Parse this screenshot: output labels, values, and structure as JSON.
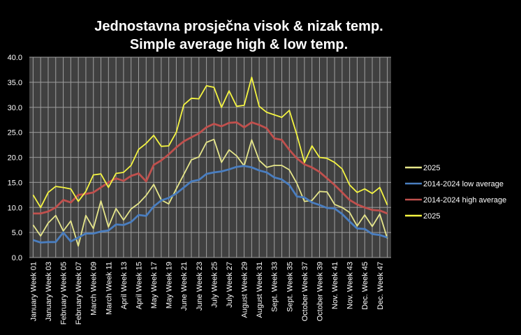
{
  "chart_data": {
    "type": "line",
    "title": [
      "Jednostavna prosječna visok & nizak temp.",
      "Simple average high & low temp."
    ],
    "xlabel": "",
    "ylabel": "",
    "ylim": [
      0,
      40
    ],
    "yticks": [
      "0.0",
      "5.0",
      "10.0",
      "15.0",
      "20.0",
      "25.0",
      "30.0",
      "35.0",
      "40.0"
    ],
    "grid": true,
    "legend_position": "right",
    "x": [
      1,
      2,
      3,
      4,
      5,
      6,
      7,
      8,
      9,
      10,
      11,
      12,
      13,
      14,
      15,
      16,
      17,
      18,
      19,
      20,
      21,
      22,
      23,
      24,
      25,
      26,
      27,
      28,
      29,
      30,
      31,
      32,
      33,
      34,
      35,
      36,
      37,
      38,
      39,
      40,
      41,
      42,
      43,
      44,
      45,
      46,
      47,
      48
    ],
    "tick_labels": [
      "January Week 01",
      "January Week 03",
      "February Week 05",
      "February Week 07",
      "March Week 09",
      "March Week 11",
      "April Week 13",
      "April Week 15",
      "May Week 17",
      "May Week 19",
      "June Week 21",
      "June Week 23",
      "July Week 25",
      "July Week 27",
      "August Week 29",
      "August Week 31",
      "Sept. Week 33",
      "Sept. Week 35",
      "October Week 37",
      "October Week 39",
      "Nov. Week 41",
      "Nov. Week 43",
      "Dec. Week 45",
      "Dec. Week 47"
    ],
    "series": [
      {
        "name": "2025",
        "color": "#e6e68a",
        "values": [
          6.5,
          4.3,
          6.9,
          8.4,
          5.3,
          7.3,
          2.3,
          8.4,
          5.8,
          11.3,
          6.1,
          9.8,
          7.5,
          9.7,
          10.8,
          12.4,
          14.6,
          11.5,
          10.7,
          13.7,
          16.6,
          19.5,
          20.1,
          23.0,
          23.6,
          19.0,
          21.5,
          20.3,
          18.3,
          23.5,
          19.4,
          18.0,
          18.4,
          18.4,
          17.5,
          14.8,
          11.2,
          11.4,
          13.2,
          13.1,
          10.6,
          10.0,
          9.0,
          6.3,
          8.5,
          6.2,
          8.7,
          3.8
        ]
      },
      {
        "name": "2014-2024 low average",
        "color": "#4a7ec0",
        "values": [
          3.5,
          3.0,
          3.1,
          3.1,
          5.0,
          3.2,
          4.0,
          4.8,
          4.8,
          5.2,
          5.4,
          6.6,
          6.5,
          7.1,
          8.5,
          8.3,
          10.2,
          11.4,
          11.9,
          12.8,
          14.0,
          15.2,
          15.5,
          16.7,
          17.0,
          17.2,
          17.6,
          18.1,
          18.3,
          18.0,
          17.4,
          17.0,
          16.0,
          15.6,
          14.5,
          12.2,
          12.0,
          11.0,
          10.5,
          9.9,
          9.8,
          8.7,
          7.2,
          5.8,
          5.7,
          4.7,
          4.5,
          4.0
        ]
      },
      {
        "name": "2014-2024 high average",
        "color": "#c0504d",
        "values": [
          8.8,
          8.8,
          9.2,
          10.0,
          11.5,
          11.0,
          12.5,
          12.7,
          13.0,
          14.0,
          15.0,
          15.8,
          15.3,
          16.3,
          16.8,
          15.2,
          18.5,
          19.4,
          20.6,
          22.0,
          23.2,
          24.0,
          24.8,
          26.0,
          26.7,
          26.2,
          26.9,
          27.0,
          26.0,
          27.0,
          26.5,
          25.8,
          23.8,
          23.5,
          21.5,
          19.8,
          18.6,
          18.0,
          17.1,
          15.8,
          14.5,
          13.0,
          11.5,
          10.6,
          10.0,
          9.5,
          9.4,
          8.8
        ]
      },
      {
        "name": "2025",
        "color": "#f5f542",
        "values": [
          12.5,
          10.0,
          13.0,
          14.2,
          14.0,
          13.7,
          11.2,
          13.2,
          16.5,
          16.7,
          14.0,
          16.8,
          17.0,
          18.4,
          21.6,
          22.8,
          24.4,
          22.2,
          22.3,
          25.0,
          30.5,
          31.8,
          31.7,
          34.3,
          34.0,
          30.0,
          33.3,
          30.2,
          30.4,
          36.0,
          30.2,
          29.0,
          28.5,
          28.0,
          29.4,
          24.5,
          19.0,
          22.3,
          20.0,
          19.8,
          19.0,
          17.7,
          14.5,
          13.0,
          13.7,
          12.8,
          14.0,
          10.5
        ]
      }
    ]
  }
}
